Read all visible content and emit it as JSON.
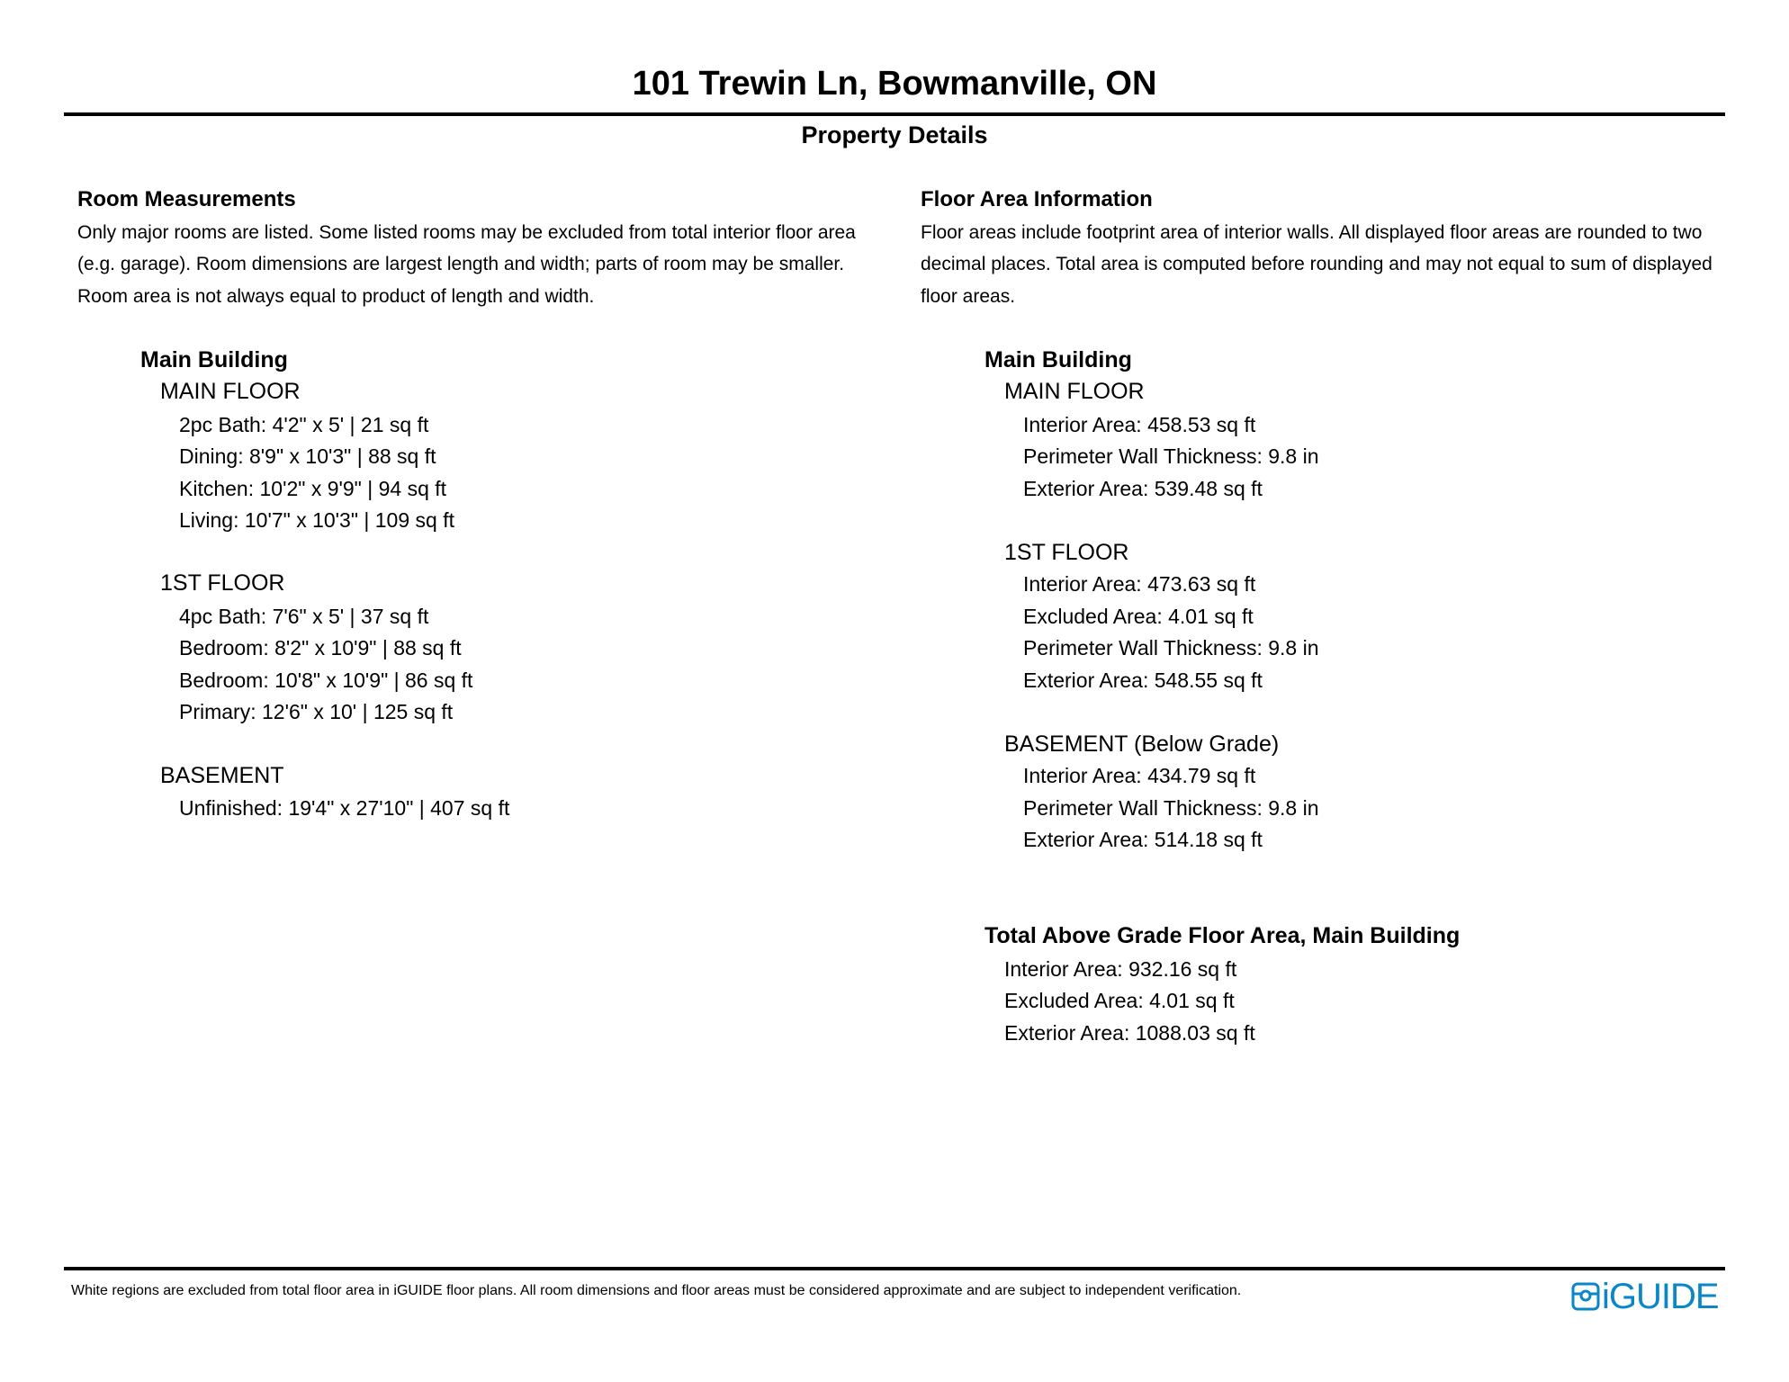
{
  "header": {
    "title": "101 Trewin Ln, Bowmanville, ON",
    "subtitle": "Property Details"
  },
  "rooms": {
    "heading": "Room Measurements",
    "description": [
      "Only major rooms are listed. Some listed rooms may be excluded from total interior floor area",
      "(e.g. garage). Room dimensions are largest length and width; parts of room may be smaller.",
      "Room area is not always equal to product of length and width."
    ],
    "building": "Main Building",
    "floors": [
      {
        "name": "MAIN FLOOR",
        "items": [
          "2pc Bath: 4'2\" x 5' | 21 sq ft",
          "Dining: 8'9\" x 10'3\" | 88 sq ft",
          "Kitchen: 10'2\" x 9'9\" | 94 sq ft",
          "Living: 10'7\" x 10'3\" | 109 sq ft"
        ]
      },
      {
        "name": "1ST FLOOR",
        "items": [
          "4pc Bath: 7'6\" x 5' | 37 sq ft",
          "Bedroom: 8'2\" x 10'9\" | 88 sq ft",
          "Bedroom: 10'8\" x 10'9\" | 86 sq ft",
          "Primary: 12'6\" x 10' | 125 sq ft"
        ]
      },
      {
        "name": "BASEMENT",
        "items": [
          "Unfinished: 19'4\" x 27'10\" | 407 sq ft"
        ]
      }
    ]
  },
  "floor_area": {
    "heading": "Floor Area Information",
    "description": [
      "Floor areas include footprint area of interior walls. All displayed floor areas are rounded to two",
      "decimal places. Total area is computed before rounding and may not equal to sum of displayed",
      "floor areas."
    ],
    "building": "Main Building",
    "floors": [
      {
        "name": "MAIN FLOOR",
        "items": [
          "Interior Area: 458.53 sq ft",
          "Perimeter Wall Thickness: 9.8 in",
          "Exterior Area: 539.48 sq ft"
        ]
      },
      {
        "name": "1ST FLOOR",
        "items": [
          "Interior Area: 473.63 sq ft",
          "Excluded Area: 4.01 sq ft",
          "Perimeter Wall Thickness: 9.8 in",
          "Exterior Area: 548.55 sq ft"
        ]
      },
      {
        "name": "BASEMENT (Below Grade)",
        "items": [
          "Interior Area: 434.79 sq ft",
          "Perimeter Wall Thickness: 9.8 in",
          "Exterior Area: 514.18 sq ft"
        ]
      }
    ],
    "total": {
      "heading": "Total Above Grade Floor Area, Main Building",
      "items": [
        "Interior Area: 932.16 sq ft",
        "Excluded Area: 4.01 sq ft",
        "Exterior Area: 1088.03 sq ft"
      ]
    }
  },
  "footer": {
    "disclaimer": "White regions are excluded from total floor area in iGUIDE floor plans. All room dimensions and floor areas must be considered approximate and are subject to independent verification.",
    "logo_text": "iGUIDE",
    "brand_color": "#0a86c9"
  }
}
